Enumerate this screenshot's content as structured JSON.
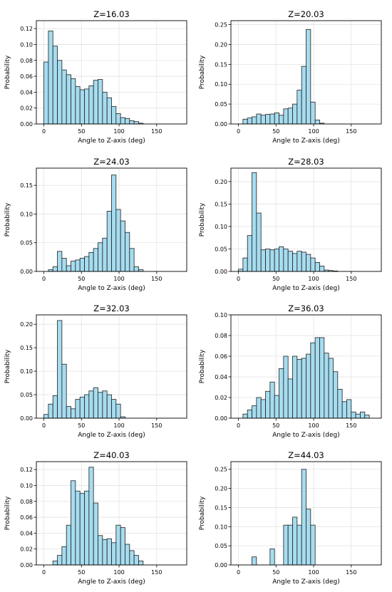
{
  "chart_data": [
    {
      "type": "bar",
      "title": "Z=16.03",
      "xlabel": "Angle to Z-axis (deg)",
      "ylabel": "Probability",
      "xlim": [
        -10,
        190
      ],
      "ylim": [
        0,
        0.13
      ],
      "xticks": [
        0,
        50,
        100,
        150
      ],
      "yticks": [
        0.0,
        0.02,
        0.04,
        0.06,
        0.08,
        0.1,
        0.12
      ],
      "ytick_labels": [
        "0.00",
        "0.02",
        "0.04",
        "0.06",
        "0.08",
        "0.10",
        "0.12"
      ],
      "grid": true,
      "bin_width": 6,
      "bin_starts": [
        0,
        6,
        12,
        18,
        24,
        30,
        36,
        42,
        48,
        54,
        60,
        66,
        72,
        78,
        84,
        90,
        96,
        102,
        108,
        114,
        120,
        126
      ],
      "values": [
        0.078,
        0.117,
        0.098,
        0.08,
        0.068,
        0.062,
        0.057,
        0.047,
        0.043,
        0.044,
        0.048,
        0.055,
        0.056,
        0.04,
        0.033,
        0.022,
        0.013,
        0.008,
        0.007,
        0.004,
        0.003,
        0.001
      ]
    },
    {
      "type": "bar",
      "title": "Z=20.03",
      "xlabel": "Angle to Z-axis (deg)",
      "ylabel": "Probability",
      "xlim": [
        -10,
        190
      ],
      "ylim": [
        0,
        0.26
      ],
      "xticks": [
        0,
        50,
        100,
        150
      ],
      "yticks": [
        0.0,
        0.05,
        0.1,
        0.15,
        0.2,
        0.25
      ],
      "ytick_labels": [
        "0.00",
        "0.05",
        "0.10",
        "0.15",
        "0.20",
        "0.25"
      ],
      "grid": true,
      "bin_width": 6,
      "bin_starts": [
        6,
        12,
        18,
        24,
        30,
        36,
        42,
        48,
        54,
        60,
        66,
        72,
        78,
        84,
        90,
        96,
        102,
        108
      ],
      "values": [
        0.012,
        0.015,
        0.018,
        0.025,
        0.022,
        0.024,
        0.025,
        0.028,
        0.022,
        0.038,
        0.04,
        0.05,
        0.085,
        0.145,
        0.238,
        0.055,
        0.01,
        0.002
      ]
    },
    {
      "type": "bar",
      "title": "Z=24.03",
      "xlabel": "Angle to Z-axis (deg)",
      "ylabel": "Probability",
      "xlim": [
        -10,
        190
      ],
      "ylim": [
        0,
        0.18
      ],
      "xticks": [
        0,
        50,
        100,
        150
      ],
      "yticks": [
        0.0,
        0.05,
        0.1,
        0.15
      ],
      "ytick_labels": [
        "0.00",
        "0.05",
        "0.10",
        "0.15"
      ],
      "grid": true,
      "bin_width": 6,
      "bin_starts": [
        6,
        12,
        18,
        24,
        30,
        36,
        42,
        48,
        54,
        60,
        66,
        72,
        78,
        84,
        90,
        96,
        102,
        108,
        114,
        120,
        126
      ],
      "values": [
        0.003,
        0.008,
        0.035,
        0.023,
        0.01,
        0.018,
        0.02,
        0.023,
        0.026,
        0.033,
        0.04,
        0.05,
        0.058,
        0.105,
        0.168,
        0.108,
        0.088,
        0.068,
        0.04,
        0.008,
        0.003
      ]
    },
    {
      "type": "bar",
      "title": "Z=28.03",
      "xlabel": "Angle to Z-axis (deg)",
      "ylabel": "Probability",
      "xlim": [
        -10,
        190
      ],
      "ylim": [
        0,
        0.23
      ],
      "xticks": [
        0,
        50,
        100,
        150
      ],
      "yticks": [
        0.0,
        0.05,
        0.1,
        0.15,
        0.2
      ],
      "ytick_labels": [
        "0.00",
        "0.05",
        "0.10",
        "0.15",
        "0.20"
      ],
      "grid": true,
      "bin_width": 6,
      "bin_starts": [
        0,
        6,
        12,
        18,
        24,
        30,
        36,
        42,
        48,
        54,
        60,
        66,
        72,
        78,
        84,
        90,
        96,
        102,
        108,
        114,
        120,
        126
      ],
      "values": [
        0.005,
        0.03,
        0.08,
        0.22,
        0.13,
        0.048,
        0.05,
        0.048,
        0.05,
        0.055,
        0.05,
        0.045,
        0.04,
        0.045,
        0.043,
        0.038,
        0.03,
        0.02,
        0.012,
        0.003,
        0.002,
        0.001
      ]
    },
    {
      "type": "bar",
      "title": "Z=32.03",
      "xlabel": "Angle to Z-axis (deg)",
      "ylabel": "Probability",
      "xlim": [
        -10,
        190
      ],
      "ylim": [
        0,
        0.22
      ],
      "xticks": [
        0,
        50,
        100,
        150
      ],
      "yticks": [
        0.0,
        0.05,
        0.1,
        0.15,
        0.2
      ],
      "ytick_labels": [
        "0.00",
        "0.05",
        "0.10",
        "0.15",
        "0.20"
      ],
      "grid": true,
      "bin_width": 6,
      "bin_starts": [
        0,
        6,
        12,
        18,
        24,
        30,
        36,
        42,
        48,
        54,
        60,
        66,
        72,
        78,
        84,
        90,
        96,
        102
      ],
      "values": [
        0.008,
        0.03,
        0.048,
        0.208,
        0.115,
        0.025,
        0.02,
        0.04,
        0.045,
        0.05,
        0.058,
        0.065,
        0.055,
        0.058,
        0.05,
        0.04,
        0.03,
        0.003
      ]
    },
    {
      "type": "bar",
      "title": "Z=36.03",
      "xlabel": "Angle to Z-axis (deg)",
      "ylabel": "Probability",
      "xlim": [
        -10,
        190
      ],
      "ylim": [
        0,
        0.1
      ],
      "xticks": [
        0,
        50,
        100,
        150
      ],
      "yticks": [
        0.0,
        0.02,
        0.04,
        0.06,
        0.08,
        0.1
      ],
      "ytick_labels": [
        "0.00",
        "0.02",
        "0.04",
        "0.06",
        "0.08",
        "0.10"
      ],
      "grid": true,
      "bin_width": 6,
      "bin_starts": [
        6,
        12,
        18,
        24,
        30,
        36,
        42,
        48,
        54,
        60,
        66,
        72,
        78,
        84,
        90,
        96,
        102,
        108,
        114,
        120,
        126,
        132,
        138,
        144,
        150,
        156,
        162,
        168
      ],
      "values": [
        0.004,
        0.008,
        0.012,
        0.02,
        0.018,
        0.026,
        0.035,
        0.022,
        0.048,
        0.06,
        0.038,
        0.06,
        0.057,
        0.058,
        0.062,
        0.073,
        0.078,
        0.078,
        0.063,
        0.058,
        0.045,
        0.028,
        0.016,
        0.018,
        0.006,
        0.004,
        0.006,
        0.003
      ]
    },
    {
      "type": "bar",
      "title": "Z=40.03",
      "xlabel": "Angle to Z-axis (deg)",
      "ylabel": "Probability",
      "xlim": [
        -10,
        190
      ],
      "ylim": [
        0,
        0.13
      ],
      "xticks": [
        0,
        50,
        100,
        150
      ],
      "yticks": [
        0.0,
        0.02,
        0.04,
        0.06,
        0.08,
        0.1,
        0.12
      ],
      "ytick_labels": [
        "0.00",
        "0.02",
        "0.04",
        "0.06",
        "0.08",
        "0.10",
        "0.12"
      ],
      "grid": true,
      "bin_width": 6,
      "bin_starts": [
        12,
        18,
        24,
        30,
        36,
        42,
        48,
        54,
        60,
        66,
        72,
        78,
        84,
        90,
        96,
        102,
        108,
        114,
        120,
        126
      ],
      "values": [
        0.005,
        0.012,
        0.023,
        0.05,
        0.106,
        0.093,
        0.09,
        0.093,
        0.123,
        0.078,
        0.037,
        0.032,
        0.033,
        0.028,
        0.05,
        0.047,
        0.026,
        0.018,
        0.012,
        0.005
      ]
    },
    {
      "type": "bar",
      "title": "Z=44.03",
      "xlabel": "Angle to Z-axis (deg)",
      "ylabel": "Probability",
      "xlim": [
        -10,
        190
      ],
      "ylim": [
        0,
        0.27
      ],
      "xticks": [
        0,
        50,
        100,
        150
      ],
      "yticks": [
        0.0,
        0.05,
        0.1,
        0.15,
        0.2,
        0.25
      ],
      "ytick_labels": [
        "0.00",
        "0.05",
        "0.10",
        "0.15",
        "0.20",
        "0.25"
      ],
      "grid": true,
      "bin_width": 6,
      "bin_starts": [
        18,
        42,
        60,
        66,
        72,
        78,
        84,
        90,
        96
      ],
      "values": [
        0.021,
        0.042,
        0.104,
        0.104,
        0.125,
        0.104,
        0.25,
        0.146,
        0.104
      ]
    }
  ]
}
